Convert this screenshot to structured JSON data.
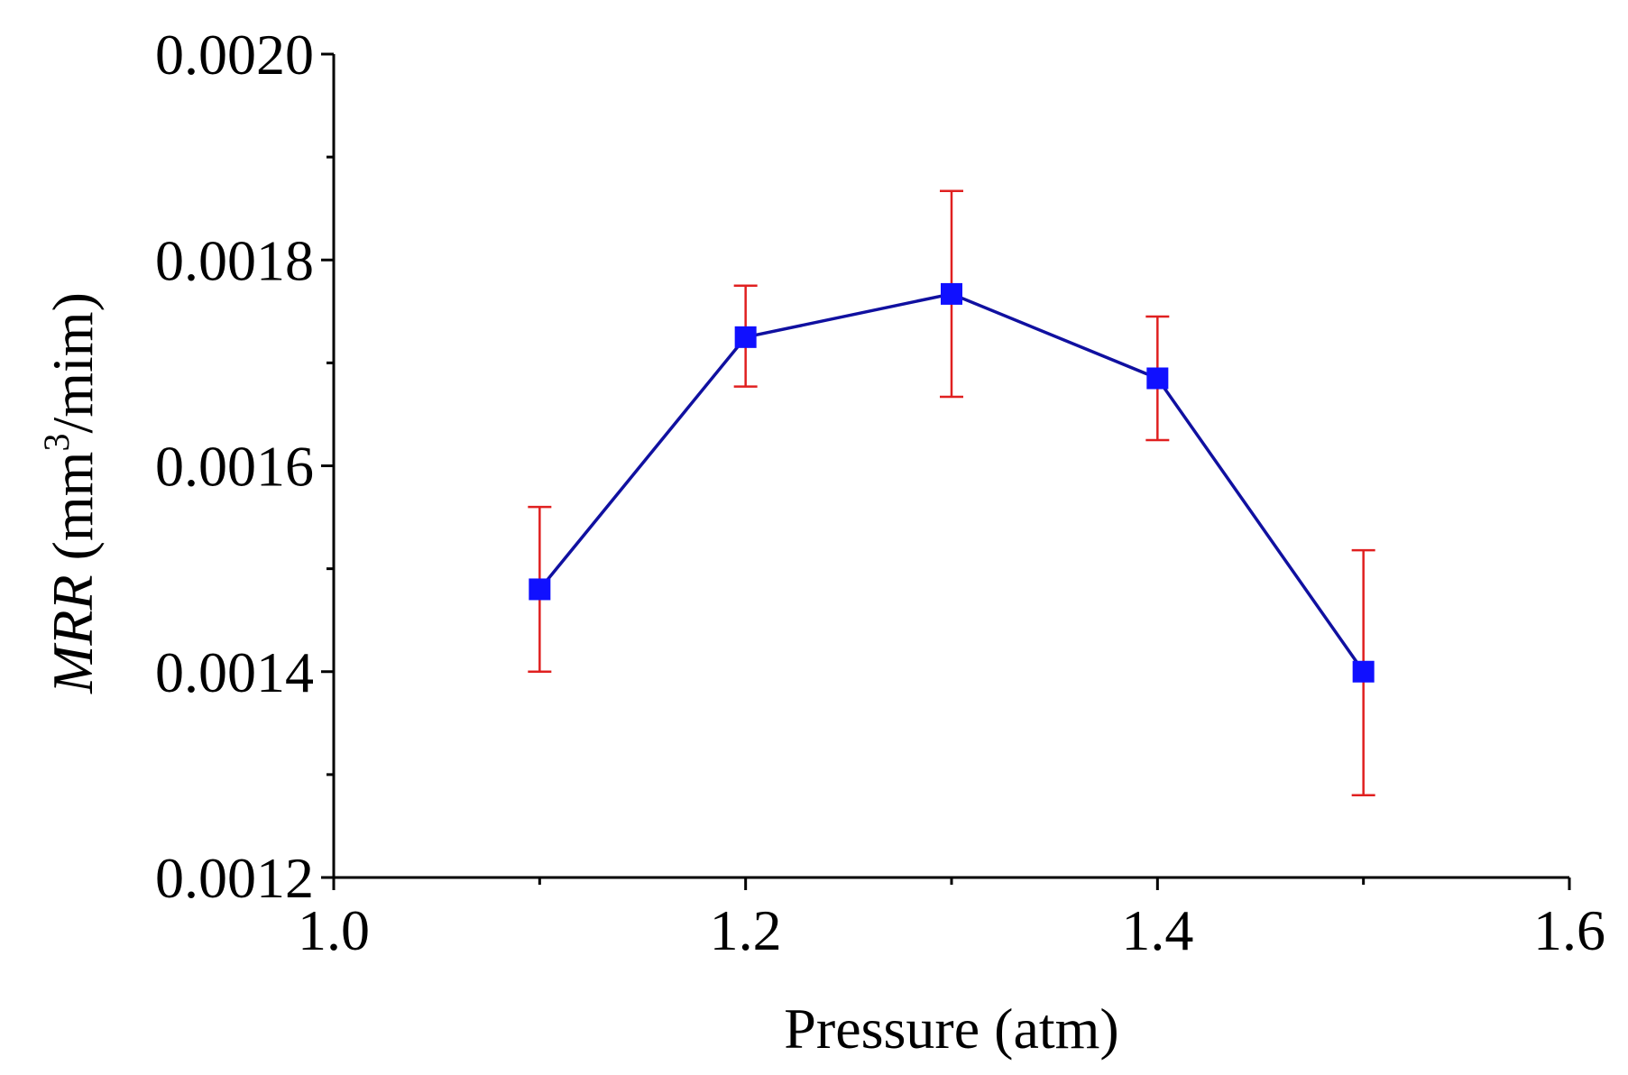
{
  "colors": {
    "series_line": "#1010a0",
    "marker": "#1010ff",
    "error_bar": "#e02020",
    "axis": "#000000"
  },
  "chart_data": {
    "type": "line",
    "title": "",
    "xlabel": "Pressure (atm)",
    "ylabel_italic": "MRR",
    "ylabel_unit_prefix": " (mm",
    "ylabel_superscript": "3",
    "ylabel_unit_suffix": "/mim)",
    "xlim": [
      1.0,
      1.6
    ],
    "ylim": [
      0.0012,
      0.002
    ],
    "x_ticks": [
      1.0,
      1.2,
      1.4,
      1.6
    ],
    "x_tick_labels": [
      "1.0",
      "1.2",
      "1.4",
      "1.6"
    ],
    "y_ticks": [
      0.0012,
      0.0014,
      0.0016,
      0.0018,
      0.002
    ],
    "y_tick_labels": [
      "0.0012",
      "0.0014",
      "0.0016",
      "0.0018",
      "0.0020"
    ],
    "y_minor_ticks": [
      0.0013,
      0.0015,
      0.0017,
      0.0019
    ],
    "x_minor_ticks": [
      1.1,
      1.3,
      1.5
    ],
    "grid": false,
    "series": [
      {
        "name": "MRR",
        "x": [
          1.1,
          1.2,
          1.3,
          1.4,
          1.5
        ],
        "y": [
          0.00148,
          0.001725,
          0.001767,
          0.001685,
          0.0014
        ],
        "err_low": [
          0.0014,
          0.001677,
          0.001667,
          0.001625,
          0.00128
        ],
        "err_high": [
          0.00156,
          0.001775,
          0.001867,
          0.001745,
          0.001518
        ]
      }
    ]
  }
}
